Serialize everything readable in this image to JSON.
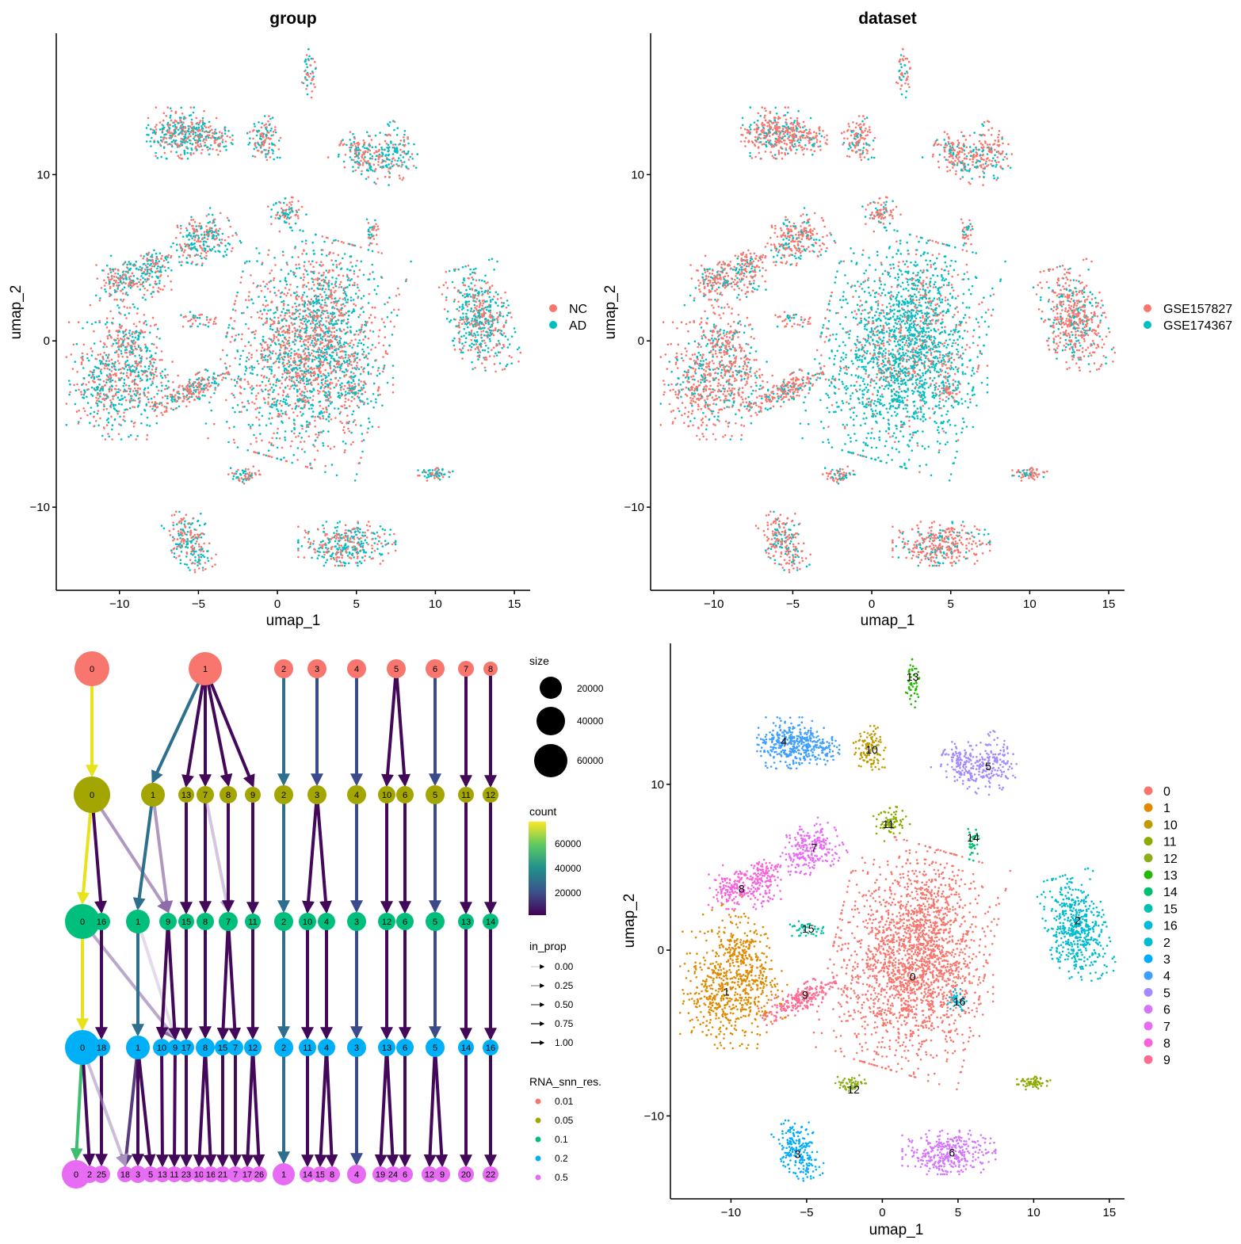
{
  "chart_data": [
    {
      "type": "scatter",
      "title": "group",
      "xlabel": "umap_1",
      "ylabel": "umap_2",
      "xlim": [
        -14,
        16
      ],
      "ylim": [
        -15,
        18.5
      ],
      "x_ticks": [
        {
          "v": -10,
          "label": "−10"
        },
        {
          "v": -5,
          "label": "−5"
        },
        {
          "v": 0,
          "label": "0"
        },
        {
          "v": 5,
          "label": "5"
        },
        {
          "v": 10,
          "label": "10"
        },
        {
          "v": 15,
          "label": "15"
        }
      ],
      "y_ticks": [
        {
          "v": -10,
          "label": "−10"
        },
        {
          "v": 0,
          "label": "0"
        },
        {
          "v": 10,
          "label": "10"
        }
      ],
      "legend": [
        {
          "label": "NC",
          "color": "#F8766D"
        },
        {
          "label": "AD",
          "color": "#00BFC4"
        }
      ],
      "legend_position": "right"
    },
    {
      "type": "scatter",
      "title": "dataset",
      "xlabel": "umap_1",
      "ylabel": "umap_2",
      "xlim": [
        -14,
        16
      ],
      "ylim": [
        -15,
        18.5
      ],
      "x_ticks": [
        {
          "v": -10,
          "label": "−10"
        },
        {
          "v": -5,
          "label": "−5"
        },
        {
          "v": 0,
          "label": "0"
        },
        {
          "v": 5,
          "label": "5"
        },
        {
          "v": 10,
          "label": "10"
        },
        {
          "v": 15,
          "label": "15"
        }
      ],
      "y_ticks": [
        {
          "v": -10,
          "label": "−10"
        },
        {
          "v": 0,
          "label": "0"
        },
        {
          "v": 10,
          "label": "10"
        }
      ],
      "legend": [
        {
          "label": "GSE157827",
          "color": "#F8766D"
        },
        {
          "label": "GSE174367",
          "color": "#00BFC4"
        }
      ],
      "legend_position": "right"
    },
    {
      "type": "clustree",
      "resolutions": [
        {
          "label": "0.01",
          "color": "#F8766D",
          "clusters": [
            "0",
            "1",
            "2",
            "3",
            "4",
            "5",
            "6",
            "7",
            "8"
          ]
        },
        {
          "label": "0.05",
          "color": "#A3A500",
          "clusters": [
            "0",
            "1",
            "13",
            "7",
            "8",
            "9",
            "2",
            "3",
            "4",
            "10",
            "6",
            "5",
            "11",
            "12"
          ]
        },
        {
          "label": "0.1",
          "color": "#00BF7D",
          "clusters": [
            "0",
            "16",
            "1",
            "9",
            "15",
            "8",
            "7",
            "11",
            "2",
            "10",
            "4",
            "3",
            "12",
            "6",
            "5",
            "13",
            "14"
          ]
        },
        {
          "label": "0.2",
          "color": "#00B0F6",
          "clusters": [
            "0",
            "18",
            "1",
            "10",
            "9",
            "17",
            "8",
            "15",
            "7",
            "12",
            "2",
            "11",
            "4",
            "3",
            "13",
            "6",
            "5",
            "14",
            "16"
          ]
        },
        {
          "label": "0.5",
          "color": "#E76BF3",
          "clusters": [
            "0",
            "2",
            "25",
            "18",
            "3",
            "5",
            "13",
            "11",
            "23",
            "10",
            "16",
            "21",
            "7",
            "17",
            "26",
            "1",
            "14",
            "15",
            "8",
            "4",
            "19",
            "24",
            "6",
            "12",
            "9",
            "20",
            "22"
          ]
        }
      ],
      "legend_size": {
        "title": "size",
        "values": [
          20000,
          40000,
          60000
        ]
      },
      "legend_count": {
        "title": "count",
        "values": [
          60000,
          40000,
          20000
        ]
      },
      "legend_in_prop": {
        "title": "in_prop",
        "values": [
          "0.00",
          "0.25",
          "0.50",
          "0.75",
          "1.00"
        ]
      },
      "legend_res": {
        "title": "RNA_snn_res.",
        "values": [
          "0.01",
          "0.05",
          "0.1",
          "0.2",
          "0.5"
        ]
      }
    },
    {
      "type": "scatter",
      "title": "",
      "xlabel": "umap_1",
      "ylabel": "umap_2",
      "xlim": [
        -14,
        16
      ],
      "ylim": [
        -15,
        18.5
      ],
      "x_ticks": [
        {
          "v": -10,
          "label": "−10"
        },
        {
          "v": -5,
          "label": "−5"
        },
        {
          "v": 0,
          "label": "0"
        },
        {
          "v": 5,
          "label": "5"
        },
        {
          "v": 10,
          "label": "10"
        },
        {
          "v": 15,
          "label": "15"
        }
      ],
      "y_ticks": [
        {
          "v": -10,
          "label": "−10"
        },
        {
          "v": 0,
          "label": "0"
        },
        {
          "v": 10,
          "label": "10"
        }
      ],
      "legend": [
        {
          "label": "0",
          "color": "#F8766D"
        },
        {
          "label": "1",
          "color": "#E18A00"
        },
        {
          "label": "10",
          "color": "#BE9C00"
        },
        {
          "label": "11",
          "color": "#8CAB00"
        },
        {
          "label": "12",
          "color": "#8BAE1A"
        },
        {
          "label": "13",
          "color": "#24B700"
        },
        {
          "label": "14",
          "color": "#00BE70"
        },
        {
          "label": "15",
          "color": "#00C1AB"
        },
        {
          "label": "16",
          "color": "#00BBDA"
        },
        {
          "label": "2",
          "color": "#00BCD0"
        },
        {
          "label": "3",
          "color": "#00ACFC"
        },
        {
          "label": "4",
          "color": "#3E9FFE"
        },
        {
          "label": "5",
          "color": "#A58AFF"
        },
        {
          "label": "6",
          "color": "#D575FE"
        },
        {
          "label": "7",
          "color": "#E76BF3"
        },
        {
          "label": "8",
          "color": "#F962DD"
        },
        {
          "label": "9",
          "color": "#FF6C91"
        }
      ],
      "cluster_labels": [
        {
          "label": "13",
          "x": 2.0,
          "y": 16.5
        },
        {
          "label": "4",
          "x": -6.5,
          "y": 12.6
        },
        {
          "label": "10",
          "x": -0.7,
          "y": 12.1
        },
        {
          "label": "5",
          "x": 7.0,
          "y": 11.1
        },
        {
          "label": "11",
          "x": 0.4,
          "y": 7.6
        },
        {
          "label": "14",
          "x": 6.0,
          "y": 6.8
        },
        {
          "label": "7",
          "x": -4.5,
          "y": 6.2
        },
        {
          "label": "8",
          "x": -9.3,
          "y": 3.7
        },
        {
          "label": "2",
          "x": 12.9,
          "y": 1.8
        },
        {
          "label": "15",
          "x": -4.9,
          "y": 1.3
        },
        {
          "label": "0",
          "x": 2.0,
          "y": -1.6
        },
        {
          "label": "1",
          "x": -10.3,
          "y": -2.5
        },
        {
          "label": "9",
          "x": -5.1,
          "y": -2.7
        },
        {
          "label": "16",
          "x": 5.1,
          "y": -3.1
        },
        {
          "label": "12",
          "x": -1.9,
          "y": -8.4
        },
        {
          "label": "3",
          "x": -5.6,
          "y": -12.3
        },
        {
          "label": "6",
          "x": 4.6,
          "y": -12.2
        }
      ]
    }
  ]
}
